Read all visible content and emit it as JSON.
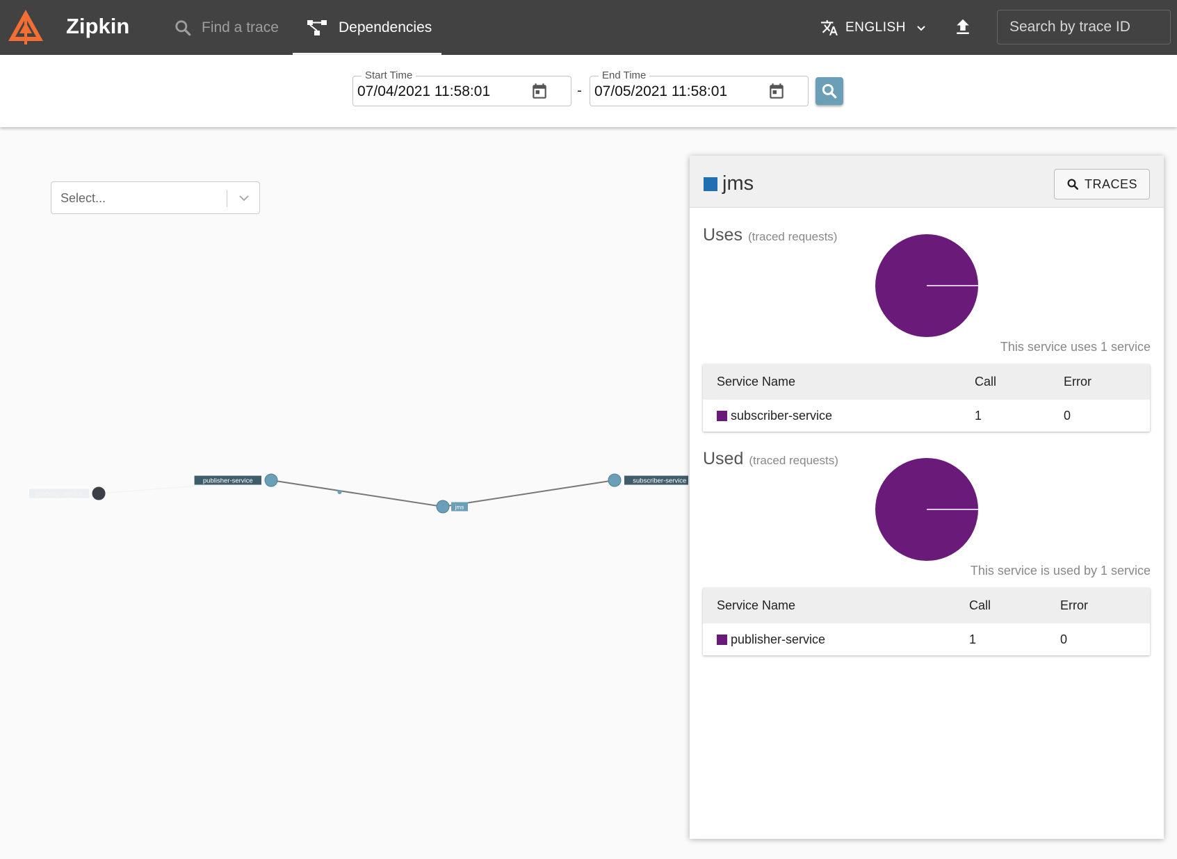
{
  "app": {
    "name": "Zipkin",
    "colors": {
      "topbar": "#424242",
      "brand_orange": "#f26e32",
      "accent": "#6b9fb8",
      "service_color": "#6a1b7a",
      "selected_node_color": "#1f6fb2"
    }
  },
  "nav": {
    "find_trace": "Find a trace",
    "dependencies": "Dependencies",
    "language": "ENGLISH",
    "trace_id_placeholder": "Search by trace ID"
  },
  "date_range": {
    "start_label": "Start Time",
    "start_value": "07/04/2021 11:58:01",
    "separator": "-",
    "end_label": "End Time",
    "end_value": "07/05/2021 11:58:01"
  },
  "filter": {
    "placeholder": "Select..."
  },
  "graph": {
    "nodes": [
      "gateway-service",
      "publisher-service",
      "jms",
      "subscriber-service"
    ],
    "edges": [
      {
        "from": "gateway-service",
        "to": "publisher-service",
        "dimmed": true
      },
      {
        "from": "publisher-service",
        "to": "jms",
        "dimmed": false
      },
      {
        "from": "jms",
        "to": "subscriber-service",
        "dimmed": false
      }
    ],
    "selected": "jms",
    "dimmed_nodes": [
      "gateway-service"
    ]
  },
  "detail": {
    "service": "jms",
    "traces_button": "TRACES",
    "uses": {
      "title": "Uses",
      "subtitle": "(traced requests)",
      "caption": "This service uses 1 service",
      "columns": [
        "Service Name",
        "Call",
        "Error"
      ],
      "rows": [
        {
          "name": "subscriber-service",
          "call": "1",
          "error": "0"
        }
      ]
    },
    "used": {
      "title": "Used",
      "subtitle": "(traced requests)",
      "caption": "This service is used by 1 service",
      "columns": [
        "Service Name",
        "Call",
        "Error"
      ],
      "rows": [
        {
          "name": "publisher-service",
          "call": "1",
          "error": "0"
        }
      ]
    }
  }
}
